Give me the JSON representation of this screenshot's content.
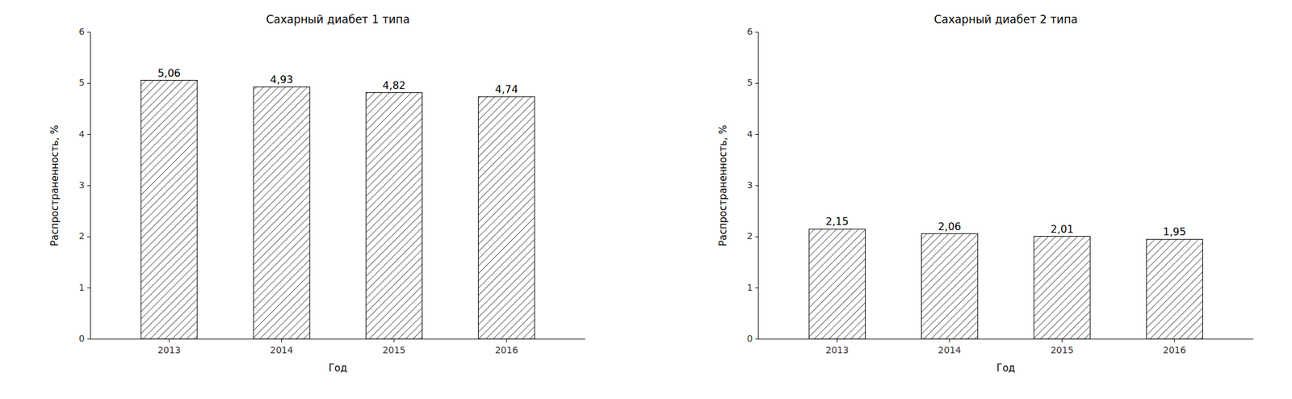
{
  "chart_data": [
    {
      "type": "bar",
      "title": "Сахарный диабет 1 типа",
      "categories": [
        "2013",
        "2014",
        "2015",
        "2016"
      ],
      "values": [
        5.06,
        4.93,
        4.82,
        4.74
      ],
      "value_labels": [
        "5,06",
        "4,93",
        "4,82",
        "4,74"
      ],
      "data_labels": true,
      "color": "#ffffff",
      "ylim": [
        0,
        6
      ],
      "yticks": [
        0,
        1,
        2,
        3,
        4,
        5,
        6
      ],
      "xlabel": "Год",
      "ylabel": "Распространенность, %",
      "grid": false
    },
    {
      "type": "bar",
      "title": "Сахарный диабет 2 типа",
      "categories": [
        "2013",
        "2014",
        "2015",
        "2016"
      ],
      "values": [
        2.15,
        2.06,
        2.01,
        1.95
      ],
      "value_labels": [
        "2,15",
        "2,06",
        "2,01",
        "1,95"
      ],
      "data_labels": true,
      "color": "#ffffff",
      "ylim": [
        0,
        6
      ],
      "yticks": [
        0,
        1,
        2,
        3,
        4,
        5,
        6
      ],
      "xlabel": "Год",
      "ylabel": "Распространенность, %",
      "grid": false
    }
  ]
}
